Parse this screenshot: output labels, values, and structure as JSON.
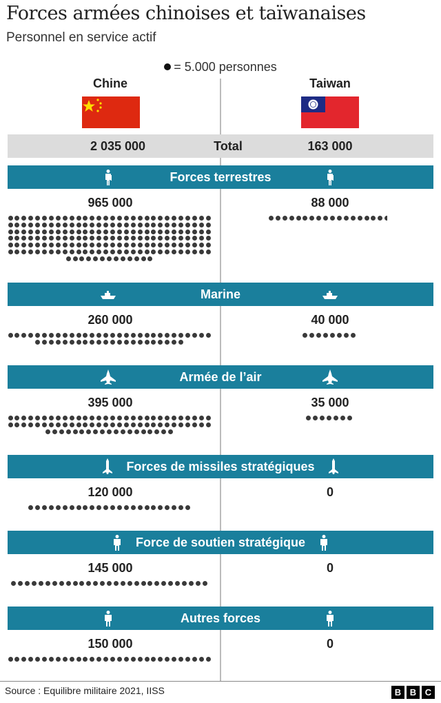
{
  "title": "Forces armées chinoises et taïwanaises",
  "subtitle": "Personnel en service actif",
  "legend": "= 5.000 personnes",
  "countries": {
    "left": "Chine",
    "right": "Taiwan"
  },
  "total": {
    "label": "Total",
    "left": "2 035 000",
    "right": "163 000"
  },
  "colors": {
    "band": "#1a7f9c",
    "dot": "#3a3a3a",
    "total_band": "#dcdcdc",
    "china_flag": "#de2910",
    "taiwan_flag_red": "#e3262d",
    "taiwan_flag_blue": "#1d2b84"
  },
  "source": "Source : Equilibre militaire 2021, IISS",
  "logo": [
    "B",
    "B",
    "C"
  ],
  "chart_data": {
    "type": "pictogram",
    "unit_per_dot": 5000,
    "series": [
      {
        "name": "Chine"
      },
      {
        "name": "Taiwan"
      }
    ],
    "categories": [
      {
        "label": "Forces terrestres",
        "icon": "soldier-icon",
        "left": 965000,
        "right": 88000,
        "left_label": "965 000",
        "right_label": "88 000"
      },
      {
        "label": "Marine",
        "icon": "ship-icon",
        "left": 260000,
        "right": 40000,
        "left_label": "260 000",
        "right_label": "40 000"
      },
      {
        "label": "Armée de l’air",
        "icon": "fighter-jet-icon",
        "left": 395000,
        "right": 35000,
        "left_label": "395 000",
        "right_label": "35 000"
      },
      {
        "label": "Forces de missiles stratégiques",
        "icon": "missile-icon",
        "left": 120000,
        "right": 0,
        "left_label": "120 000",
        "right_label": "0"
      },
      {
        "label": "Force de soutien stratégique",
        "icon": "person-icon",
        "left": 145000,
        "right": 0,
        "left_label": "145 000",
        "right_label": "0"
      },
      {
        "label": "Autres forces",
        "icon": "person-icon",
        "left": 150000,
        "right": 0,
        "left_label": "150 000",
        "right_label": "0"
      }
    ]
  }
}
